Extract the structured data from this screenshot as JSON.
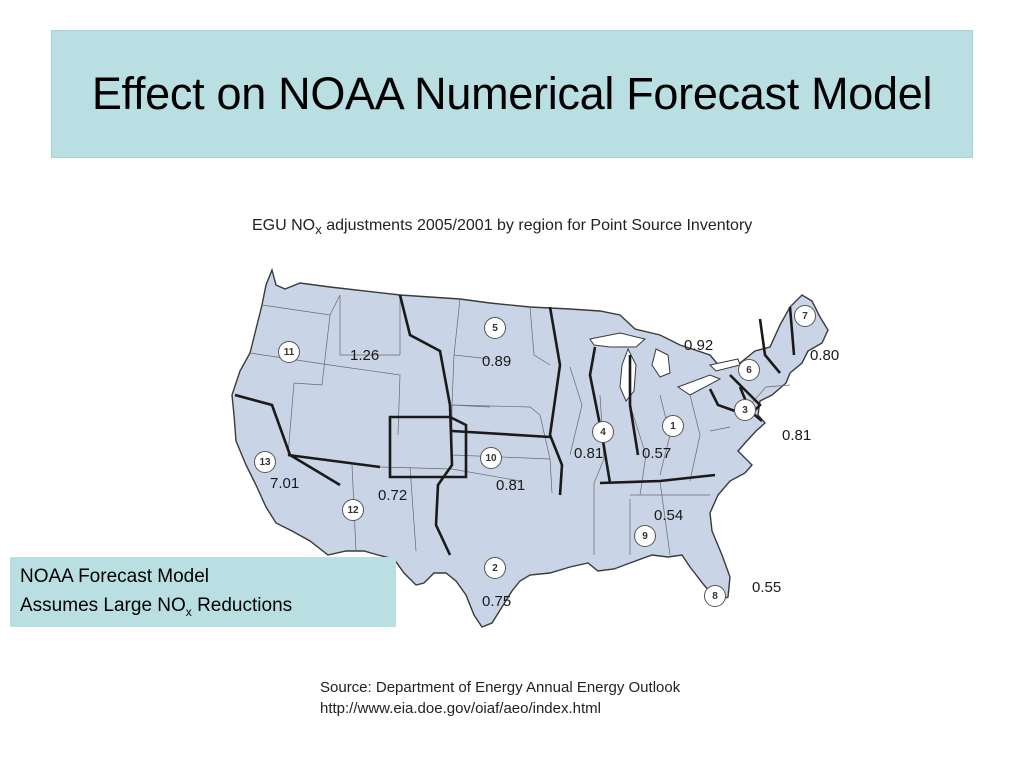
{
  "slide": {
    "title": "Effect on NOAA Numerical Forecast Model"
  },
  "map": {
    "caption_prefix": "EGU NO",
    "caption_sub": "x",
    "caption_suffix": " adjustments 2005/2001 by region for Point Source Inventory",
    "fill_color": "#c9d4e6",
    "border_color": "#3a3a3a",
    "regions": [
      {
        "number": "1",
        "value": "0.57"
      },
      {
        "number": "2",
        "value": "0.75"
      },
      {
        "number": "3",
        "value": "0.81"
      },
      {
        "number": "4",
        "value": "0.81"
      },
      {
        "number": "5",
        "value": "0.89"
      },
      {
        "number": "6",
        "value": "0.92"
      },
      {
        "number": "7",
        "value": "0.80"
      },
      {
        "number": "8",
        "value": "0.55"
      },
      {
        "number": "9",
        "value": "0.54"
      },
      {
        "number": "10",
        "value": "0.81"
      },
      {
        "number": "11",
        "value": "1.26"
      },
      {
        "number": "12",
        "value": "0.72"
      },
      {
        "number": "13",
        "value": "7.01"
      }
    ]
  },
  "callout": {
    "line1": "NOAA Forecast Model",
    "line2_prefix": "Assumes Large NO",
    "line2_sub": "x",
    "line2_suffix": " Reductions",
    "background": "#b9dfe2"
  },
  "source": {
    "line1": "Source: Department of Energy Annual Energy Outlook",
    "line2": "http://www.eia.doe.gov/oiaf/aeo/index.html"
  }
}
